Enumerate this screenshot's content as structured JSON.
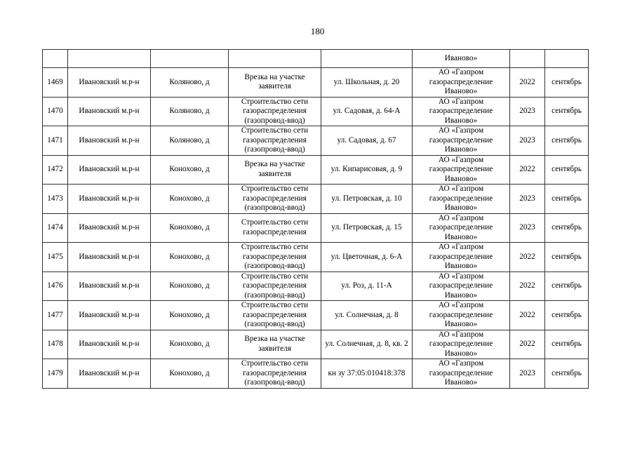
{
  "page_number": "180",
  "continuation_row": [
    "",
    "",
    "",
    "",
    "",
    "Иваново»",
    "",
    ""
  ],
  "rows": [
    [
      "1469",
      "Ивановский м.р-н",
      "Коляново, д",
      "Врезка на участке заявителя",
      "ул. Школьная, д. 20",
      "АО «Газпром газораспределение Иваново»",
      "2022",
      "сентябрь"
    ],
    [
      "1470",
      "Ивановский м.р-н",
      "Коляново, д",
      "Строительство сети газораспределения (газопровод-ввод)",
      "ул. Садовая, д. 64-А",
      "АО «Газпром газораспределение Иваново»",
      "2023",
      "сентябрь"
    ],
    [
      "1471",
      "Ивановский м.р-н",
      "Коляново, д",
      "Строительство сети газораспределения (газопровод-ввод)",
      "ул. Садовая, д. 67",
      "АО «Газпром газораспределение Иваново»",
      "2023",
      "сентябрь"
    ],
    [
      "1472",
      "Ивановский м.р-н",
      "Конохово, д",
      "Врезка на участке заявителя",
      "ул. Кипарисовая, д. 9",
      "АО «Газпром газораспределение Иваново»",
      "2022",
      "сентябрь"
    ],
    [
      "1473",
      "Ивановский м.р-н",
      "Конохово, д",
      "Строительство сети газораспределения (газопровод-ввод)",
      "ул. Петровская, д. 10",
      "АО «Газпром газораспределение Иваново»",
      "2023",
      "сентябрь"
    ],
    [
      "1474",
      "Ивановский м.р-н",
      "Конохово, д",
      "Строительство сети газораспределения",
      "ул. Петровская, д. 15",
      "АО «Газпром газораспределение Иваново»",
      "2023",
      "сентябрь"
    ],
    [
      "1475",
      "Ивановский м.р-н",
      "Конохово, д",
      "Строительство сети газораспределения (газопровод-ввод)",
      "ул. Цветочная, д. 6-А",
      "АО «Газпром газораспределение Иваново»",
      "2022",
      "сентябрь"
    ],
    [
      "1476",
      "Ивановский м.р-н",
      "Конохово, д",
      "Строительство сети газораспределения (газопровод-ввод)",
      "ул. Роз, д. 11-А",
      "АО «Газпром газораспределение Иваново»",
      "2022",
      "сентябрь"
    ],
    [
      "1477",
      "Ивановский м.р-н",
      "Конохово, д",
      "Строительство сети газораспределения (газопровод-ввод)",
      "ул. Солнечная, д. 8",
      "АО «Газпром газораспределение Иваново»",
      "2022",
      "сентябрь"
    ],
    [
      "1478",
      "Ивановский м.р-н",
      "Конохово, д",
      "Врезка на участке заявителя",
      "ул. Солнечная, д. 8, кв. 2",
      "АО «Газпром газораспределение Иваново»",
      "2022",
      "сентябрь"
    ],
    [
      "1479",
      "Ивановский м.р-н",
      "Конохово, д",
      "Строительство сети газораспределения (газопровод-ввод)",
      "кн зу 37:05:010418:378",
      "АО «Газпром газораспределение Иваново»",
      "2023",
      "сентябрь"
    ]
  ]
}
